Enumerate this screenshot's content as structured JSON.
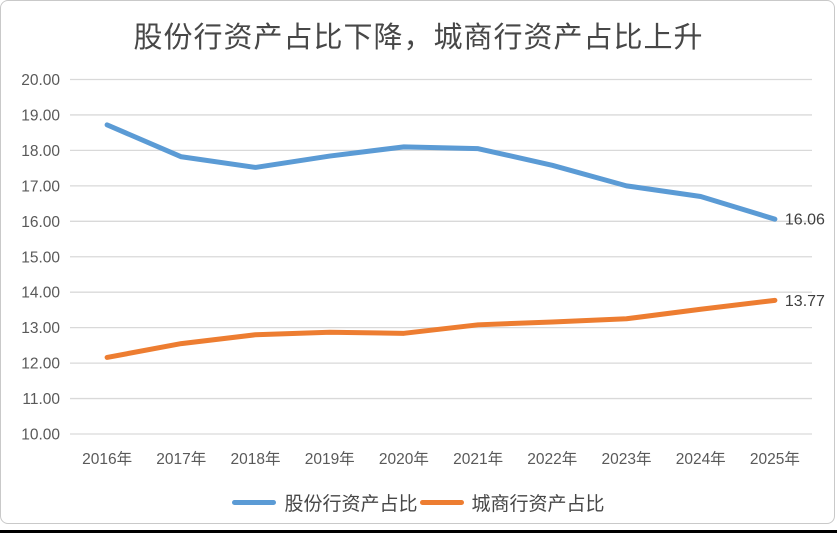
{
  "chart_data": {
    "type": "line",
    "title": "股份行资产占比下降，城商行资产占比上升",
    "categories": [
      "2016年",
      "2017年",
      "2018年",
      "2019年",
      "2020年",
      "2021年",
      "2022年",
      "2023年",
      "2024年",
      "2025年"
    ],
    "series": [
      {
        "name": "股份行资产占比",
        "color": "#5B9BD5",
        "values": [
          18.72,
          17.82,
          17.52,
          17.84,
          18.1,
          18.05,
          17.58,
          17.0,
          16.7,
          16.06
        ],
        "end_label": "16.06"
      },
      {
        "name": "城商行资产占比",
        "color": "#ED7D31",
        "values": [
          12.16,
          12.55,
          12.8,
          12.87,
          12.84,
          13.08,
          13.16,
          13.25,
          13.52,
          13.77
        ],
        "end_label": "13.77"
      }
    ],
    "ylim": [
      10,
      20
    ],
    "ytick_step": 1,
    "ytick_decimals": 2,
    "ytick_labels": [
      "10.00",
      "11.00",
      "12.00",
      "13.00",
      "14.00",
      "15.00",
      "16.00",
      "17.00",
      "18.00",
      "19.00",
      "20.00"
    ],
    "grid": true,
    "legend_position": "bottom",
    "xlabel": "",
    "ylabel": ""
  },
  "colors": {
    "grid_line": "#D9D9D9",
    "tick_text": "#595959",
    "title_text": "#474747",
    "data_label_text": "#404040",
    "frame_border": "#C9C9C9",
    "screenshot_bottom_edge": "#000000"
  }
}
